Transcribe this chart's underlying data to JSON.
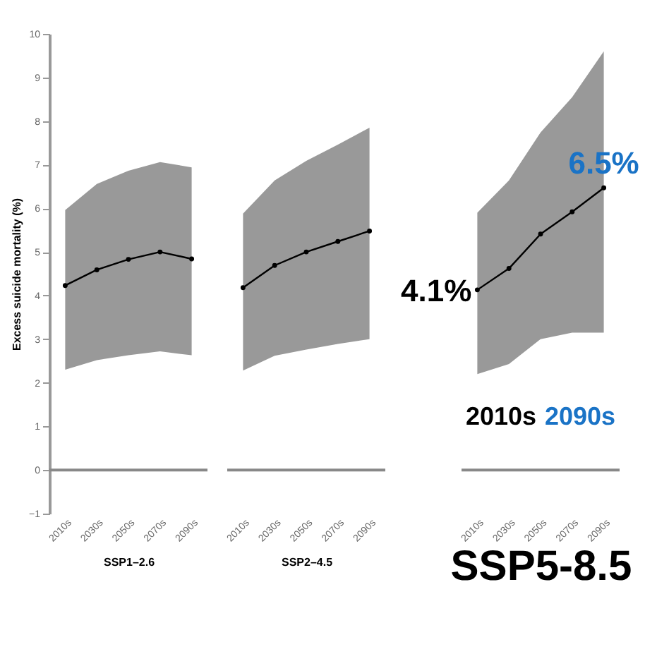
{
  "chart_data": [
    {
      "type": "line",
      "categories": [
        "2010s",
        "2030s",
        "2050s",
        "2070s",
        "2090s"
      ],
      "ylabel": "Excess suicide mortality (%)",
      "xlabel": "SSP1–2.6",
      "ylim": [
        -1,
        10
      ],
      "yticks": [
        -1,
        0,
        1,
        2,
        3,
        4,
        5,
        6,
        7,
        8,
        9,
        10
      ],
      "marker": "circle",
      "ref_lines": [
        {
          "axis": "y",
          "value": 0,
          "color": "#888888"
        }
      ],
      "series": [
        {
          "color": "#000000",
          "values": [
            4.23,
            4.59,
            4.83,
            5.0,
            4.84
          ],
          "lower": [
            2.3,
            2.52,
            2.63,
            2.72,
            2.63
          ],
          "upper": [
            5.96,
            6.56,
            6.86,
            7.06,
            6.94
          ]
        }
      ]
    },
    {
      "type": "line",
      "categories": [
        "2010s",
        "2030s",
        "2050s",
        "2070s",
        "2090s"
      ],
      "xlabel": "SSP2–4.5",
      "ylim": [
        -1,
        10
      ],
      "tick_labels": "x",
      "marker": "circle",
      "ref_lines": [
        {
          "axis": "y",
          "value": 0,
          "color": "#888888"
        }
      ],
      "series": [
        {
          "color": "#000000",
          "values": [
            4.18,
            4.69,
            5.0,
            5.24,
            5.48
          ],
          "lower": [
            2.28,
            2.62,
            2.76,
            2.89,
            3.0
          ],
          "upper": [
            5.88,
            6.64,
            7.09,
            7.46,
            7.85
          ]
        }
      ]
    },
    {
      "type": "line",
      "categories": [
        "2010s",
        "2030s",
        "2050s",
        "2070s",
        "2090s"
      ],
      "xlabel": "SSP5-8.5",
      "ylim": [
        -1,
        10
      ],
      "tick_labels": "x",
      "marker": "circle",
      "ref_lines": [
        {
          "axis": "y",
          "value": 0,
          "color": "#888888"
        }
      ],
      "series": [
        {
          "color": "#000000",
          "values": [
            4.13,
            4.62,
            5.41,
            5.92,
            6.47
          ],
          "lower": [
            2.2,
            2.43,
            3.0,
            3.15,
            3.15
          ],
          "upper": [
            5.9,
            6.64,
            7.74,
            8.55,
            9.6
          ]
        }
      ],
      "annotations": [
        {
          "text": "4.1%",
          "x": "2010s",
          "y": 4.1
        },
        {
          "text": "6.5%",
          "x": "2090s",
          "y": 6.5
        },
        "2010s",
        "2090s"
      ]
    }
  ]
}
